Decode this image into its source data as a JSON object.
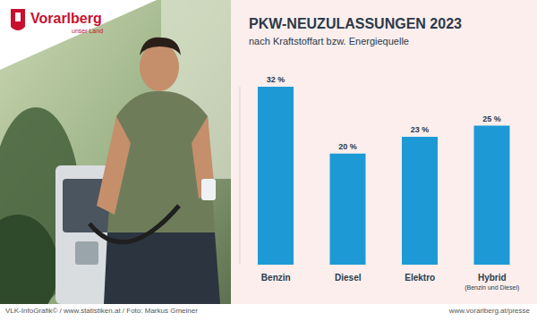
{
  "chart_data": {
    "type": "bar",
    "title": "PKW-NEUZULASSUNGEN 2023",
    "subtitle": "nach Kraftstoffart bzw. Energiequelle",
    "categories": [
      "Benzin",
      "Diesel",
      "Elektro",
      "Hybrid (Benzin und Diesel)"
    ],
    "values": [
      32,
      20,
      23,
      25
    ],
    "value_labels": [
      "32 %",
      "20 %",
      "23 %",
      "25 %"
    ],
    "color": "#1d9ad6",
    "ylim": [
      0,
      32
    ],
    "data_labels": true,
    "tick_labels": "x",
    "grid": false
  },
  "logo": {
    "name": "Vorarlberg",
    "tagline": "unser Land"
  },
  "footer": {
    "left": "VLK-InfoGrafik© / www.statistiken.at / Foto: Markus Gmeiner",
    "right": "www.vorarlberg.at/presse"
  }
}
